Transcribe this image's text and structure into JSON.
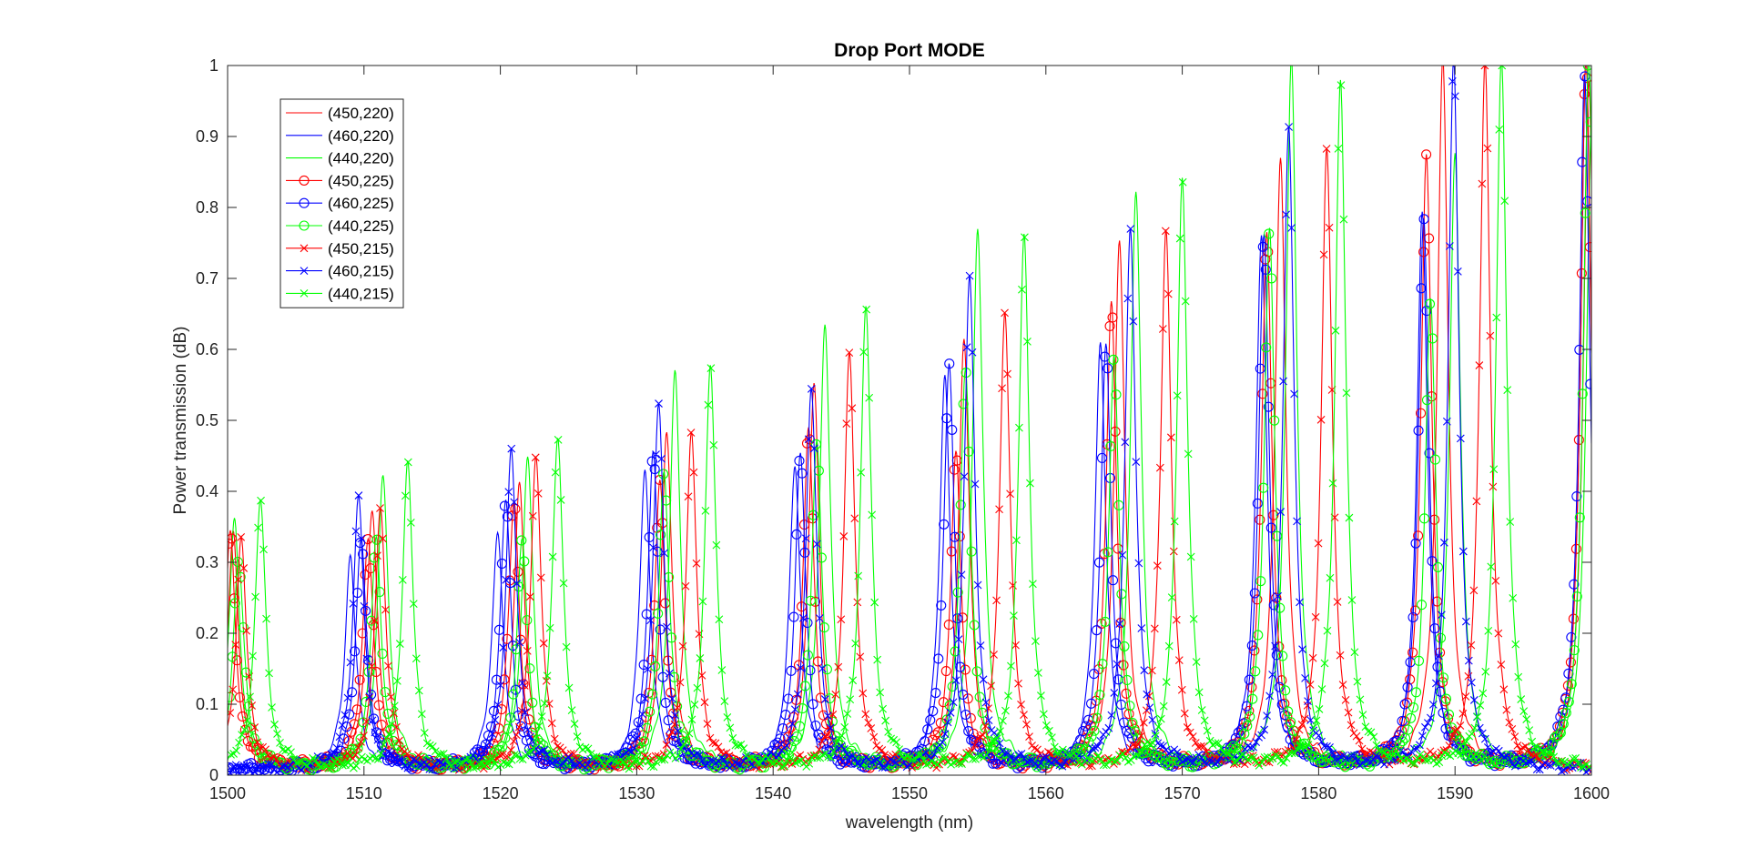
{
  "chart_data": {
    "type": "line",
    "title": "Drop Port MODE",
    "xlabel": "wavelength (nm)",
    "ylabel": "Power transmission (dB)",
    "xlim": [
      1500,
      1600
    ],
    "ylim": [
      0,
      1
    ],
    "xticks": [
      "1500",
      "1510",
      "1520",
      "1530",
      "1540",
      "1550",
      "1560",
      "1570",
      "1580",
      "1590",
      "1600"
    ],
    "yticks": [
      "0",
      "0.1",
      "0.2",
      "0.3",
      "0.4",
      "0.5",
      "0.6",
      "0.7",
      "0.8",
      "0.9",
      "1"
    ],
    "grid": false,
    "legend_position": "top-left",
    "peak_fwhm_nm": 1.2,
    "series": [
      {
        "name": "(450,220)",
        "color": "#ff0000",
        "marker": "none",
        "peaks": [
          [
            1500.4,
            0.33
          ],
          [
            1510.6,
            0.37
          ],
          [
            1521.4,
            0.4
          ],
          [
            1532.2,
            0.47
          ],
          [
            1543.0,
            0.54
          ],
          [
            1554.0,
            0.6
          ],
          [
            1565.4,
            0.74
          ],
          [
            1577.2,
            0.86
          ],
          [
            1589.1,
            1.0
          ],
          [
            1599.8,
            0.97
          ]
        ]
      },
      {
        "name": "(460,220)",
        "color": "#0000ff",
        "marker": "none",
        "peaks": [
          [
            1509.0,
            0.3
          ],
          [
            1519.8,
            0.34
          ],
          [
            1530.6,
            0.42
          ],
          [
            1541.6,
            0.43
          ],
          [
            1552.6,
            0.55
          ],
          [
            1564.0,
            0.6
          ],
          [
            1575.8,
            0.75
          ],
          [
            1587.6,
            0.78
          ],
          [
            1599.6,
            1.0
          ]
        ]
      },
      {
        "name": "(440,220)",
        "color": "#00ff00",
        "marker": "none",
        "peaks": [
          [
            1500.5,
            0.35
          ],
          [
            1511.4,
            0.41
          ],
          [
            1522.0,
            0.44
          ],
          [
            1532.8,
            0.56
          ],
          [
            1543.8,
            0.63
          ],
          [
            1555.0,
            0.76
          ],
          [
            1566.6,
            0.81
          ],
          [
            1578.0,
            1.0
          ],
          [
            1590.0,
            0.87
          ],
          [
            1600.0,
            0.9
          ]
        ]
      },
      {
        "name": "(450,225)",
        "color": "#ff0000",
        "marker": "circle",
        "peaks": [
          [
            1500.2,
            0.33
          ],
          [
            1510.3,
            0.33
          ],
          [
            1521.0,
            0.38
          ],
          [
            1531.7,
            0.4
          ],
          [
            1542.6,
            0.48
          ],
          [
            1553.4,
            0.44
          ],
          [
            1564.8,
            0.65
          ],
          [
            1576.2,
            0.75
          ],
          [
            1587.9,
            0.87
          ],
          [
            1599.6,
            1.0
          ]
        ]
      },
      {
        "name": "(460,225)",
        "color": "#0000ff",
        "marker": "circle",
        "peaks": [
          [
            1509.8,
            0.33
          ],
          [
            1520.4,
            0.38
          ],
          [
            1531.2,
            0.44
          ],
          [
            1542.0,
            0.44
          ],
          [
            1552.9,
            0.57
          ],
          [
            1564.4,
            0.59
          ],
          [
            1576.0,
            0.75
          ],
          [
            1587.7,
            0.78
          ],
          [
            1599.5,
            0.97
          ]
        ]
      },
      {
        "name": "(440,225)",
        "color": "#00ff00",
        "marker": "circle",
        "peaks": [
          [
            1500.8,
            0.3
          ],
          [
            1510.9,
            0.32
          ],
          [
            1521.6,
            0.32
          ],
          [
            1532.0,
            0.42
          ],
          [
            1543.2,
            0.46
          ],
          [
            1554.1,
            0.57
          ],
          [
            1565.0,
            0.58
          ],
          [
            1576.4,
            0.76
          ],
          [
            1588.2,
            0.66
          ],
          [
            1599.8,
            1.0
          ]
        ]
      },
      {
        "name": "(450,215)",
        "color": "#ff0000",
        "marker": "x",
        "peaks": [
          [
            1501.0,
            0.32
          ],
          [
            1511.2,
            0.37
          ],
          [
            1522.6,
            0.44
          ],
          [
            1534.0,
            0.47
          ],
          [
            1545.6,
            0.58
          ],
          [
            1557.0,
            0.64
          ],
          [
            1568.8,
            0.76
          ],
          [
            1580.6,
            0.87
          ],
          [
            1592.2,
            1.0
          ]
        ]
      },
      {
        "name": "(460,215)",
        "color": "#0000ff",
        "marker": "x",
        "peaks": [
          [
            1509.6,
            0.39
          ],
          [
            1520.8,
            0.45
          ],
          [
            1531.6,
            0.52
          ],
          [
            1542.8,
            0.54
          ],
          [
            1554.4,
            0.69
          ],
          [
            1566.2,
            0.76
          ],
          [
            1577.8,
            0.91
          ],
          [
            1589.9,
            1.0
          ]
        ]
      },
      {
        "name": "(440,215)",
        "color": "#00ff00",
        "marker": "x",
        "peaks": [
          [
            1502.4,
            0.38
          ],
          [
            1513.2,
            0.43
          ],
          [
            1524.2,
            0.47
          ],
          [
            1535.4,
            0.57
          ],
          [
            1546.8,
            0.65
          ],
          [
            1558.4,
            0.75
          ],
          [
            1570.0,
            0.83
          ],
          [
            1581.6,
            0.97
          ],
          [
            1593.4,
            1.0
          ]
        ]
      }
    ]
  }
}
